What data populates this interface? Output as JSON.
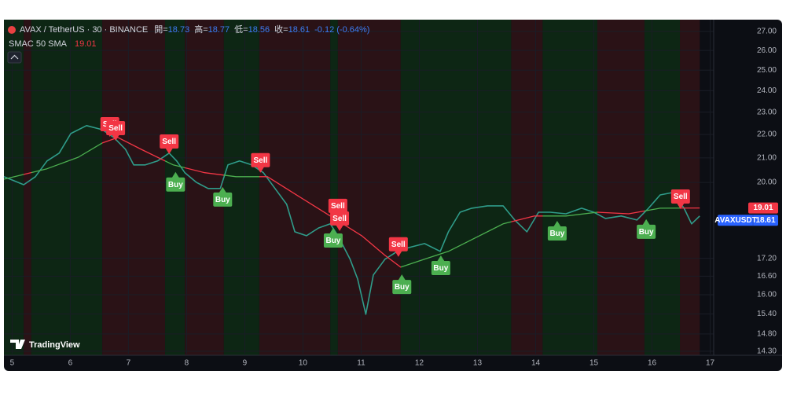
{
  "chart_data": {
    "type": "line",
    "symbol": "AVAX / TetherUS · 30 · BINANCE",
    "ohlc": [
      {
        "label": "開=",
        "value": 18.73
      },
      {
        "label": "高=",
        "value": 18.77
      },
      {
        "label": "低=",
        "value": 18.56
      },
      {
        "label": "收=",
        "value": 18.61
      }
    ],
    "change": "-0.12 (-0.64%)",
    "indicator": {
      "name": "SMAC 50 SMA",
      "value": 19.01,
      "color": "#f23645"
    },
    "symbol_tag": "AVAXUSDT",
    "watermark": "TradingView",
    "log_scale": true,
    "grid": true,
    "xlim": [
      4.86,
      17.06
    ],
    "xticks": [
      5,
      6,
      7,
      8,
      9,
      10,
      11,
      12,
      13,
      14,
      15,
      16,
      17
    ],
    "ylim": [
      14.23,
      27.51
    ],
    "yticks": [
      {
        "value": 27,
        "label": "27.00"
      },
      {
        "value": 26,
        "label": "26.00"
      },
      {
        "value": 25,
        "label": "25.00"
      },
      {
        "value": 24,
        "label": "24.00"
      },
      {
        "value": 23,
        "label": "23.00"
      },
      {
        "value": 22,
        "label": "22.00"
      },
      {
        "value": 21,
        "label": "21.00"
      },
      {
        "value": 20,
        "label": "20.00"
      },
      {
        "value": 17.2,
        "label": "17.20"
      },
      {
        "value": 16.6,
        "label": "16.60"
      },
      {
        "value": 16,
        "label": "16.00"
      },
      {
        "value": 15.4,
        "label": "15.40"
      },
      {
        "value": 14.8,
        "label": "14.80"
      },
      {
        "value": 14.3,
        "label": "14.30"
      }
    ],
    "regimes": [
      {
        "from": 4.86,
        "to": 5.2,
        "color": "#0d2614",
        "line_color": "#4caf50"
      },
      {
        "from": 5.2,
        "to": 5.33,
        "color": "#2a1216",
        "line_color": "#f23645"
      },
      {
        "from": 5.33,
        "to": 6.55,
        "color": "#0d2614",
        "line_color": "#4caf50"
      },
      {
        "from": 6.55,
        "to": 7.63,
        "color": "#2a1216",
        "line_color": "#f23645"
      },
      {
        "from": 7.63,
        "to": 7.97,
        "color": "#0d2614",
        "line_color": "#4caf50"
      },
      {
        "from": 7.97,
        "to": 8.64,
        "color": "#2a1216",
        "line_color": "#f23645"
      },
      {
        "from": 8.64,
        "to": 9.25,
        "color": "#0d2614",
        "line_color": "#4caf50"
      },
      {
        "from": 9.25,
        "to": 10.47,
        "color": "#2a1216",
        "line_color": "#f23645"
      },
      {
        "from": 10.47,
        "to": 10.6,
        "color": "#0d2614",
        "line_color": "#4caf50"
      },
      {
        "from": 10.6,
        "to": 11.68,
        "color": "#2a1216",
        "line_color": "#f23645"
      },
      {
        "from": 11.68,
        "to": 13.58,
        "color": "#0d2614",
        "line_color": "#4caf50"
      },
      {
        "from": 13.58,
        "to": 14.12,
        "color": "#2a1216",
        "line_color": "#f23645"
      },
      {
        "from": 14.12,
        "to": 15.06,
        "color": "#0d2614",
        "line_color": "#4caf50"
      },
      {
        "from": 15.06,
        "to": 15.87,
        "color": "#2a1216",
        "line_color": "#f23645"
      },
      {
        "from": 15.87,
        "to": 16.48,
        "color": "#0d2614",
        "line_color": "#4caf50"
      },
      {
        "from": 16.48,
        "to": 16.82,
        "color": "#2a1216",
        "line_color": "#f23645"
      }
    ],
    "series": [
      {
        "name": "AVAXUSDT",
        "color": "#2f9c8a",
        "x": [
          4.86,
          5.2,
          5.4,
          5.6,
          5.81,
          6.01,
          6.28,
          6.55,
          6.75,
          6.95,
          7.09,
          7.29,
          7.5,
          7.7,
          7.83,
          7.97,
          8.17,
          8.37,
          8.58,
          8.71,
          8.91,
          9.12,
          9.32,
          9.52,
          9.72,
          9.86,
          10.06,
          10.27,
          10.47,
          10.6,
          10.81,
          10.94,
          11.08,
          11.21,
          11.41,
          11.62,
          11.82,
          12.09,
          12.36,
          12.5,
          12.7,
          12.9,
          13.17,
          13.44,
          13.64,
          13.85,
          14.05,
          14.25,
          14.52,
          14.79,
          15.0,
          15.2,
          15.47,
          15.74,
          15.94,
          16.14,
          16.35,
          16.55,
          16.68,
          16.82
        ],
        "values": [
          20.23,
          19.91,
          20.23,
          20.87,
          21.2,
          22.04,
          22.39,
          22.21,
          21.87,
          21.36,
          20.71,
          20.71,
          20.87,
          21.2,
          20.87,
          20.39,
          20.0,
          19.76,
          19.76,
          20.71,
          20.87,
          20.71,
          20.39,
          19.76,
          19.15,
          18.13,
          17.99,
          18.27,
          18.42,
          17.99,
          17.17,
          16.51,
          15.39,
          16.64,
          17.17,
          17.44,
          17.57,
          17.71,
          17.44,
          18.13,
          18.85,
          19.0,
          19.09,
          19.09,
          18.56,
          18.13,
          18.85,
          18.85,
          18.79,
          19.0,
          18.85,
          18.62,
          18.71,
          18.56,
          19.0,
          19.51,
          19.6,
          19.0,
          18.42,
          18.71
        ]
      },
      {
        "name": "SMAC 50 SMA",
        "gradient": true,
        "x": [
          4.86,
          5.6,
          6.14,
          6.55,
          6.82,
          7.22,
          7.77,
          8.31,
          8.85,
          9.39,
          9.93,
          10.47,
          11.01,
          11.41,
          11.68,
          12.09,
          12.5,
          12.9,
          13.44,
          13.98,
          14.52,
          15.06,
          15.6,
          16.14,
          16.82
        ],
        "values": [
          20.13,
          20.55,
          21.03,
          21.63,
          21.87,
          21.36,
          20.71,
          20.39,
          20.23,
          20.23,
          19.45,
          18.71,
          17.99,
          17.3,
          16.9,
          17.17,
          17.44,
          17.85,
          18.42,
          18.71,
          18.71,
          18.85,
          18.79,
          19.0,
          19.01
        ]
      }
    ],
    "signals": [
      {
        "label": "Sell",
        "x": 6.68,
        "price": 21.9,
        "color": "#f23645"
      },
      {
        "label": "Sell",
        "x": 6.78,
        "price": 21.73,
        "color": "#f23645"
      },
      {
        "label": "Sell",
        "x": 7.7,
        "price": 21.16,
        "color": "#f23645"
      },
      {
        "label": "Sell",
        "x": 9.27,
        "price": 20.39,
        "color": "#f23645"
      },
      {
        "label": "Sell",
        "x": 10.6,
        "price": 18.62,
        "color": "#f23645"
      },
      {
        "label": "Sell",
        "x": 10.63,
        "price": 18.16,
        "color": "#f23645"
      },
      {
        "label": "Sell",
        "x": 11.64,
        "price": 17.25,
        "color": "#f23645"
      },
      {
        "label": "Sell",
        "x": 16.49,
        "price": 18.97,
        "color": "#f23645"
      },
      {
        "label": "Buy",
        "x": 7.81,
        "price": 20.42,
        "color": "#4caf50"
      },
      {
        "label": "Buy",
        "x": 8.62,
        "price": 19.82,
        "color": "#4caf50"
      },
      {
        "label": "Buy",
        "x": 10.52,
        "price": 18.27,
        "color": "#4caf50"
      },
      {
        "label": "Buy",
        "x": 11.7,
        "price": 16.66,
        "color": "#4caf50"
      },
      {
        "label": "Buy",
        "x": 12.37,
        "price": 17.3,
        "color": "#4caf50"
      },
      {
        "label": "Buy",
        "x": 14.37,
        "price": 18.53,
        "color": "#4caf50"
      },
      {
        "label": "Buy",
        "x": 15.9,
        "price": 18.59,
        "color": "#4caf50"
      }
    ]
  }
}
